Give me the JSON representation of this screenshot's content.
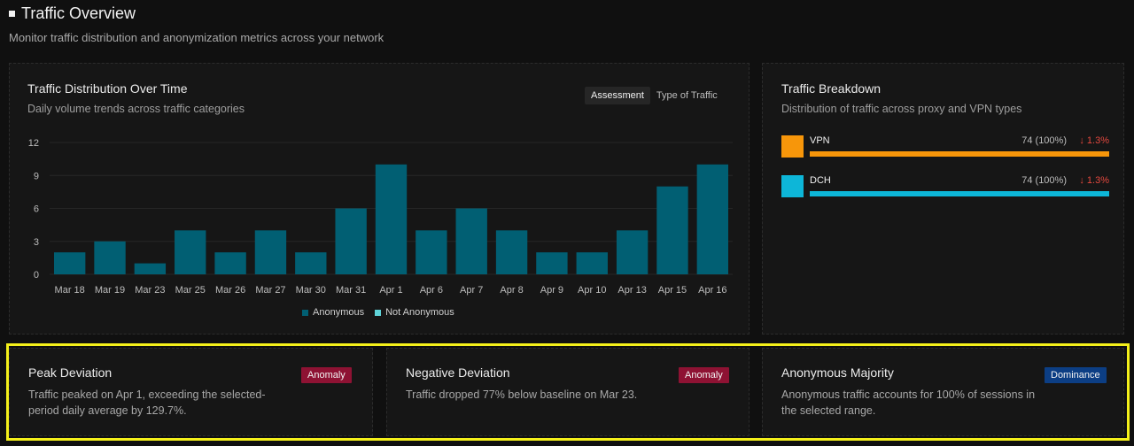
{
  "header": {
    "title": "Traffic Overview",
    "subtitle": "Monitor traffic distribution and anonymization metrics across your network"
  },
  "distribution": {
    "title": "Traffic Distribution Over Time",
    "subtitle": "Daily volume trends across traffic categories",
    "toggle": {
      "active": "Assessment",
      "inactive": "Type of Traffic"
    },
    "legend": [
      {
        "label": "Anonymous",
        "color": "#015f73"
      },
      {
        "label": "Not Anonymous",
        "color": "#5fd3d8"
      }
    ]
  },
  "chart_data": {
    "type": "bar",
    "categories": [
      "Mar 18",
      "Mar 19",
      "Mar 23",
      "Mar 25",
      "Mar 26",
      "Mar 27",
      "Mar 30",
      "Mar 31",
      "Apr 1",
      "Apr 6",
      "Apr 7",
      "Apr 8",
      "Apr 9",
      "Apr 10",
      "Apr 13",
      "Apr 15",
      "Apr 16"
    ],
    "series": [
      {
        "name": "Anonymous",
        "values": [
          2,
          3,
          1,
          4,
          2,
          4,
          2,
          6,
          10,
          4,
          6,
          4,
          2,
          2,
          4,
          8,
          10
        ],
        "color": "#015f73"
      },
      {
        "name": "Not Anonymous",
        "values": [
          0,
          0,
          0,
          0,
          0,
          0,
          0,
          0,
          0,
          0,
          0,
          0,
          0,
          0,
          0,
          0,
          0
        ],
        "color": "#5fd3d8"
      }
    ],
    "yticks": [
      0,
      3,
      6,
      9,
      12
    ],
    "ylim": [
      0,
      12
    ],
    "grid": true,
    "legend_position": "bottom"
  },
  "breakdown": {
    "title": "Traffic Breakdown",
    "subtitle": "Distribution of traffic across proxy and VPN types",
    "items": [
      {
        "label": "VPN",
        "value": "74 (100%)",
        "change": "1.3%",
        "color": "#f7960a",
        "fraction": 1.0
      },
      {
        "label": "DCH",
        "value": "74 (100%)",
        "change": "1.3%",
        "color": "#0db6d8",
        "fraction": 1.0
      }
    ]
  },
  "insights": [
    {
      "title": "Peak Deviation",
      "badge": "Anomaly",
      "text": "Traffic peaked on Apr 1, exceeding the selected-period daily average by 129.7%."
    },
    {
      "title": "Negative Deviation",
      "badge": "Anomaly",
      "text": "Traffic dropped 77% below baseline on Mar 23."
    },
    {
      "title": "Anonymous Majority",
      "badge": "Dominance",
      "text": "Anonymous traffic accounts for 100% of sessions in the selected range."
    }
  ]
}
